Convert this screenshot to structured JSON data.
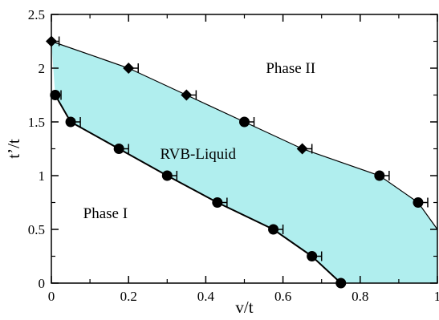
{
  "chart_data": {
    "type": "scatter",
    "xlabel": "v/t",
    "ylabel": "t’/t",
    "xlim": [
      0,
      1
    ],
    "ylim": [
      0,
      2.5
    ],
    "x_ticks": [
      "0",
      "0.2",
      "0.4",
      "0.6",
      "0.8",
      "1"
    ],
    "y_ticks": [
      "0",
      "0.5",
      "1",
      "1.5",
      "2",
      "2.5"
    ],
    "grid": false,
    "legend": "none",
    "region_fill_color": "#b0eeee",
    "line_color": "#000000",
    "annotations": [
      {
        "text": "Phase II",
        "x": 0.62,
        "y": 2.0
      },
      {
        "text": "RVB-Liquid",
        "x": 0.38,
        "y": 1.2
      },
      {
        "text": "Phase I",
        "x": 0.14,
        "y": 0.65
      }
    ],
    "series": [
      {
        "marker": "diamond",
        "role": "upper-boundary",
        "points": [
          {
            "x": 0.0,
            "y": 2.25,
            "xerr": 0.02
          },
          {
            "x": 0.2,
            "y": 2.0,
            "xerr": 0.025
          },
          {
            "x": 0.35,
            "y": 1.75,
            "xerr": 0.025
          },
          {
            "x": 0.5,
            "y": 1.5,
            "xerr": 0.025
          },
          {
            "x": 0.65,
            "y": 1.25,
            "xerr": 0.025
          },
          {
            "x": 0.85,
            "y": 1.0,
            "xerr": 0.025
          },
          {
            "x": 0.95,
            "y": 0.75,
            "xerr": 0.025
          }
        ],
        "extension": {
          "x": 1.0,
          "y": 0.5
        },
        "point_markers": [
          "diamond",
          "diamond",
          "diamond",
          "circle",
          "diamond",
          "circle",
          "circle"
        ]
      },
      {
        "marker": "circle",
        "role": "lower-boundary",
        "points": [
          {
            "x": 0.01,
            "y": 1.75,
            "xerr": 0.015
          },
          {
            "x": 0.05,
            "y": 1.5,
            "xerr": 0.025
          },
          {
            "x": 0.175,
            "y": 1.25,
            "xerr": 0.025
          },
          {
            "x": 0.3,
            "y": 1.0,
            "xerr": 0.025
          },
          {
            "x": 0.43,
            "y": 0.75,
            "xerr": 0.025
          },
          {
            "x": 0.575,
            "y": 0.5,
            "xerr": 0.025
          },
          {
            "x": 0.675,
            "y": 0.25,
            "xerr": 0.025
          },
          {
            "x": 0.75,
            "y": 0.0,
            "xerr": 0.0
          }
        ]
      }
    ]
  }
}
